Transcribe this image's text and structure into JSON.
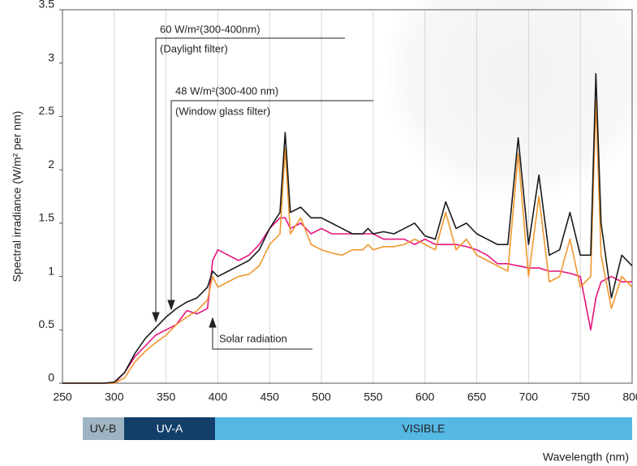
{
  "chart_data": {
    "type": "line",
    "ylabel": "Spectral irradiance (W/m² per nm)",
    "xlabel": "Wavelength (nm)",
    "bands": [
      "UV-B",
      "UV-A",
      "VISIBLE"
    ],
    "annotations": [
      "60 W/m²(300-400nm)",
      "(Daylight filter)",
      "48 W/m²(300-400 nm)",
      "(Window glass filter)",
      "Solar radiation"
    ],
    "x": [
      250,
      260,
      270,
      280,
      290,
      300,
      310,
      320,
      330,
      340,
      350,
      360,
      370,
      380,
      390,
      395,
      400,
      410,
      420,
      430,
      440,
      450,
      460,
      465,
      470,
      480,
      490,
      500,
      510,
      520,
      530,
      540,
      545,
      550,
      560,
      570,
      580,
      590,
      600,
      610,
      620,
      630,
      640,
      650,
      660,
      670,
      680,
      690,
      700,
      710,
      720,
      730,
      740,
      750,
      760,
      765,
      770,
      780,
      790,
      800
    ],
    "series": [
      {
        "color": "#e5147f",
        "values": [
          0,
          0,
          0,
          0,
          0,
          0,
          0.1,
          0.25,
          0.35,
          0.45,
          0.5,
          0.55,
          0.68,
          0.65,
          0.7,
          1.15,
          1.25,
          1.2,
          1.15,
          1.2,
          1.3,
          1.45,
          1.55,
          1.55,
          1.45,
          1.5,
          1.4,
          1.45,
          1.4,
          1.4,
          1.4,
          1.4,
          1.4,
          1.4,
          1.35,
          1.35,
          1.35,
          1.3,
          1.35,
          1.3,
          1.3,
          1.3,
          1.28,
          1.25,
          1.2,
          1.12,
          1.12,
          1.1,
          1.08,
          1.08,
          1.05,
          1.05,
          1.03,
          1.0,
          0.5,
          0.8,
          0.95,
          1.0,
          0.95,
          0.95
        ]
      },
      {
        "color": "#f0962e",
        "values": [
          0,
          0,
          0,
          0,
          0,
          0,
          0.05,
          0.2,
          0.3,
          0.38,
          0.45,
          0.55,
          0.62,
          0.68,
          0.78,
          1.0,
          0.9,
          0.95,
          1.0,
          1.02,
          1.1,
          1.3,
          1.4,
          2.2,
          1.4,
          1.55,
          1.3,
          1.25,
          1.22,
          1.2,
          1.25,
          1.25,
          1.3,
          1.25,
          1.28,
          1.28,
          1.3,
          1.35,
          1.3,
          1.25,
          1.6,
          1.25,
          1.35,
          1.2,
          1.15,
          1.1,
          1.05,
          2.15,
          1.0,
          1.75,
          0.95,
          1.0,
          1.35,
          0.9,
          1.0,
          2.65,
          1.2,
          0.7,
          1.0,
          0.9
        ]
      },
      {
        "color": "#1a1a1a",
        "values": [
          0,
          0,
          0,
          0,
          0,
          0.01,
          0.1,
          0.28,
          0.42,
          0.52,
          0.62,
          0.7,
          0.76,
          0.8,
          0.9,
          1.05,
          1.0,
          1.05,
          1.1,
          1.15,
          1.25,
          1.45,
          1.6,
          2.35,
          1.6,
          1.65,
          1.55,
          1.55,
          1.5,
          1.45,
          1.4,
          1.4,
          1.45,
          1.4,
          1.42,
          1.4,
          1.45,
          1.5,
          1.38,
          1.35,
          1.7,
          1.45,
          1.5,
          1.4,
          1.35,
          1.3,
          1.3,
          2.3,
          1.3,
          1.95,
          1.2,
          1.25,
          1.6,
          1.2,
          1.2,
          2.9,
          1.5,
          0.8,
          1.2,
          1.1
        ]
      }
    ],
    "xlim": [
      250,
      800
    ],
    "ylim": [
      0,
      3.5
    ],
    "xticks": [
      250,
      300,
      350,
      400,
      450,
      500,
      550,
      600,
      650,
      700,
      750,
      800
    ],
    "yticks": [
      0,
      0.5,
      1,
      1.5,
      2,
      2.5,
      3,
      3.5
    ],
    "grid": true
  }
}
